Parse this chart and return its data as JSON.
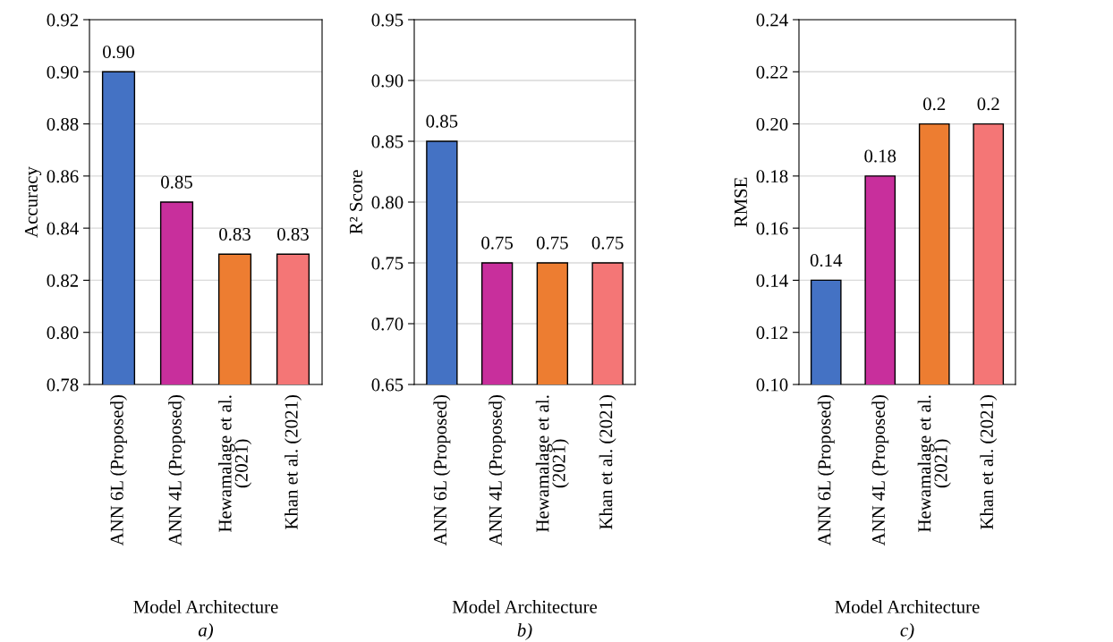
{
  "chart_data": [
    {
      "type": "bar",
      "categories": [
        "ANN 6L (Proposed)",
        "ANN 4L (Proposed)",
        "Hewamalage et al.\n(2021)",
        "Khan et al. (2021)"
      ],
      "values": [
        0.9,
        0.85,
        0.83,
        0.83
      ],
      "colors": [
        "#4472c4",
        "#c82f9c",
        "#ed7d31",
        "#f47676"
      ],
      "value_labels": [
        "0.90",
        "0.85",
        "0.83",
        "0.83"
      ],
      "xlabel": "Model Architecture",
      "ylabel": "Accuracy",
      "ylim": [
        0.78,
        0.92
      ],
      "yticks": [
        {
          "value": 0.78,
          "label": "0.78"
        },
        {
          "value": 0.8,
          "label": "0.80"
        },
        {
          "value": 0.82,
          "label": "0.82"
        },
        {
          "value": 0.84,
          "label": "0.84"
        },
        {
          "value": 0.86,
          "label": "0.86"
        },
        {
          "value": 0.88,
          "label": "0.88"
        },
        {
          "value": 0.9,
          "label": "0.90"
        },
        {
          "value": 0.92,
          "label": "0.92"
        }
      ],
      "grid": "y",
      "annotations": [
        "a)"
      ]
    },
    {
      "type": "bar",
      "categories": [
        "ANN 6L (Proposed)",
        "ANN 4L (Proposed)",
        "Hewamalage et al.\n(2021)",
        "Khan et al. (2021)"
      ],
      "values": [
        0.85,
        0.75,
        0.75,
        0.75
      ],
      "colors": [
        "#4472c4",
        "#c82f9c",
        "#ed7d31",
        "#f47676"
      ],
      "value_labels": [
        "0.85",
        "0.75",
        "0.75",
        "0.75"
      ],
      "xlabel": "Model Architecture",
      "ylabel": "R² Score",
      "ylim": [
        0.65,
        0.95
      ],
      "yticks": [
        {
          "value": 0.65,
          "label": "0.65"
        },
        {
          "value": 0.7,
          "label": "0.70"
        },
        {
          "value": 0.75,
          "label": "0.75"
        },
        {
          "value": 0.8,
          "label": "0.80"
        },
        {
          "value": 0.85,
          "label": "0.85"
        },
        {
          "value": 0.9,
          "label": "0.90"
        },
        {
          "value": 0.95,
          "label": "0.95"
        }
      ],
      "grid": "y",
      "annotations": [
        "b)"
      ]
    },
    {
      "type": "bar",
      "categories": [
        "ANN 6L (Proposed)",
        "ANN 4L (Proposed)",
        "Hewamalage et al.\n(2021)",
        "Khan et al. (2021)"
      ],
      "values": [
        0.14,
        0.18,
        0.2,
        0.2
      ],
      "colors": [
        "#4472c4",
        "#c82f9c",
        "#ed7d31",
        "#f47676"
      ],
      "value_labels": [
        "0.14",
        "0.18",
        "0.2",
        "0.2"
      ],
      "xlabel": "Model Architecture",
      "ylabel": "RMSE",
      "ylim": [
        0.1,
        0.24
      ],
      "yticks": [
        {
          "value": 0.1,
          "label": "0.10"
        },
        {
          "value": 0.12,
          "label": "0.12"
        },
        {
          "value": 0.14,
          "label": "0.14"
        },
        {
          "value": 0.16,
          "label": "0.16"
        },
        {
          "value": 0.18,
          "label": "0.18"
        },
        {
          "value": 0.2,
          "label": "0.20"
        },
        {
          "value": 0.22,
          "label": "0.22"
        },
        {
          "value": 0.24,
          "label": "0.24"
        }
      ],
      "grid": "y",
      "annotations": [
        "c)"
      ]
    }
  ]
}
